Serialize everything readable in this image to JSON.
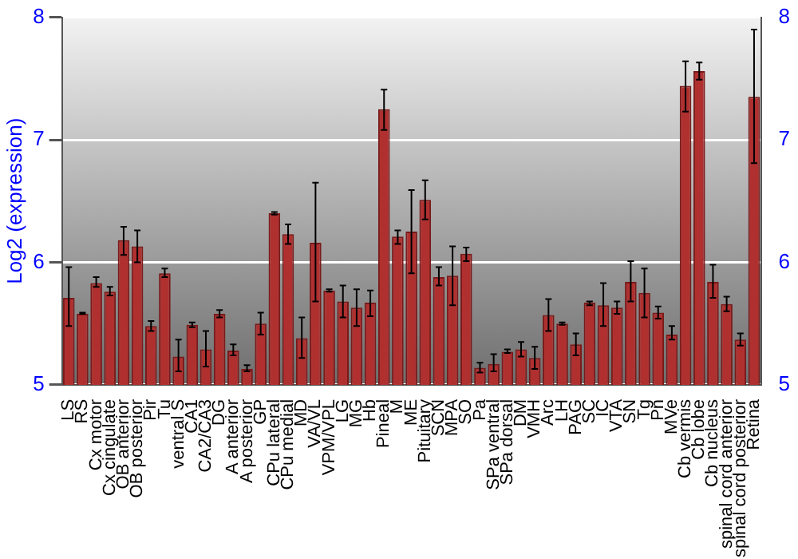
{
  "chart_data": {
    "type": "bar",
    "ylabel": "Log2 (expression)",
    "categories": [
      "LS",
      "RS",
      "Cx motor",
      "Cx cingulate",
      "OB anterior",
      "OB posterior",
      "Pir",
      "Tu",
      "ventral S",
      "CA1",
      "CA2/CA3",
      "DG",
      "A anterior",
      "A posterior",
      "GP",
      "CPu lateral",
      "CPu medial",
      "MD",
      "VA/VL",
      "VPM/VPL",
      "LG",
      "MG",
      "Hb",
      "Pineal",
      "M",
      "ME",
      "Pituitary",
      "SCN",
      "MPA",
      "SO",
      "Pa",
      "SPa ventral",
      "SPa dorsal",
      "DM",
      "VMH",
      "Arc",
      "LH",
      "PAG",
      "SC",
      "IC",
      "VTA",
      "SN",
      "Tg",
      "Pn",
      "MVe",
      "Cb vermis",
      "Cb lobe",
      "Cb nucleus",
      "spinal cord anterior",
      "spinal cord posterior",
      "Retina"
    ],
    "series": [
      {
        "color": "#b03030",
        "values": [
          5.71,
          5.58,
          5.83,
          5.76,
          6.18,
          6.13,
          5.48,
          5.91,
          5.23,
          5.49,
          5.29,
          5.58,
          5.28,
          5.13,
          5.5,
          6.4,
          6.23,
          5.38,
          6.16,
          5.77,
          5.68,
          5.63,
          5.67,
          7.25,
          6.21,
          6.25,
          6.51,
          5.88,
          5.89,
          6.07,
          5.14,
          5.17,
          5.27,
          5.29,
          5.22,
          5.57,
          5.5,
          5.33,
          5.67,
          5.65,
          5.63,
          5.84,
          5.75,
          5.59,
          5.41,
          7.44,
          7.56,
          5.84,
          5.66,
          5.37,
          7.35
        ],
        "errors": [
          [
            5.48,
            5.96
          ],
          [
            5.58,
            5.59
          ],
          [
            5.8,
            5.88
          ],
          [
            5.73,
            5.8
          ],
          [
            6.06,
            6.29
          ],
          [
            6.0,
            6.26
          ],
          [
            5.44,
            5.52
          ],
          [
            5.88,
            5.95
          ],
          [
            5.11,
            5.37
          ],
          [
            5.47,
            5.51
          ],
          [
            5.15,
            5.44
          ],
          [
            5.55,
            5.61
          ],
          [
            5.24,
            5.33
          ],
          [
            5.11,
            5.16
          ],
          [
            5.41,
            5.59
          ],
          [
            6.39,
            6.41
          ],
          [
            6.15,
            6.31
          ],
          [
            5.22,
            5.55
          ],
          [
            5.68,
            6.65
          ],
          [
            5.76,
            5.78
          ],
          [
            5.55,
            5.81
          ],
          [
            5.48,
            5.78
          ],
          [
            5.56,
            5.77
          ],
          [
            7.08,
            7.41
          ],
          [
            6.15,
            6.26
          ],
          [
            5.91,
            6.59
          ],
          [
            6.35,
            6.67
          ],
          [
            5.81,
            5.96
          ],
          [
            5.65,
            6.13
          ],
          [
            6.01,
            6.12
          ],
          [
            5.1,
            5.18
          ],
          [
            5.11,
            5.25
          ],
          [
            5.26,
            5.29
          ],
          [
            5.23,
            5.35
          ],
          [
            5.13,
            5.31
          ],
          [
            5.44,
            5.7
          ],
          [
            5.49,
            5.51
          ],
          [
            5.24,
            5.42
          ],
          [
            5.65,
            5.68
          ],
          [
            5.48,
            5.83
          ],
          [
            5.58,
            5.68
          ],
          [
            5.68,
            6.01
          ],
          [
            5.55,
            5.95
          ],
          [
            5.54,
            5.64
          ],
          [
            5.37,
            5.48
          ],
          [
            7.23,
            7.64
          ],
          [
            7.49,
            7.63
          ],
          [
            5.71,
            5.98
          ],
          [
            5.6,
            5.72
          ],
          [
            5.32,
            5.42
          ],
          [
            6.81,
            7.9
          ]
        ]
      }
    ],
    "ylim": [
      5,
      8
    ],
    "yticks": [
      5,
      6,
      7,
      8
    ],
    "y2lim": [
      5,
      8
    ],
    "y2ticks": [
      5,
      6,
      7,
      8
    ],
    "grid": "y",
    "legend": false
  }
}
